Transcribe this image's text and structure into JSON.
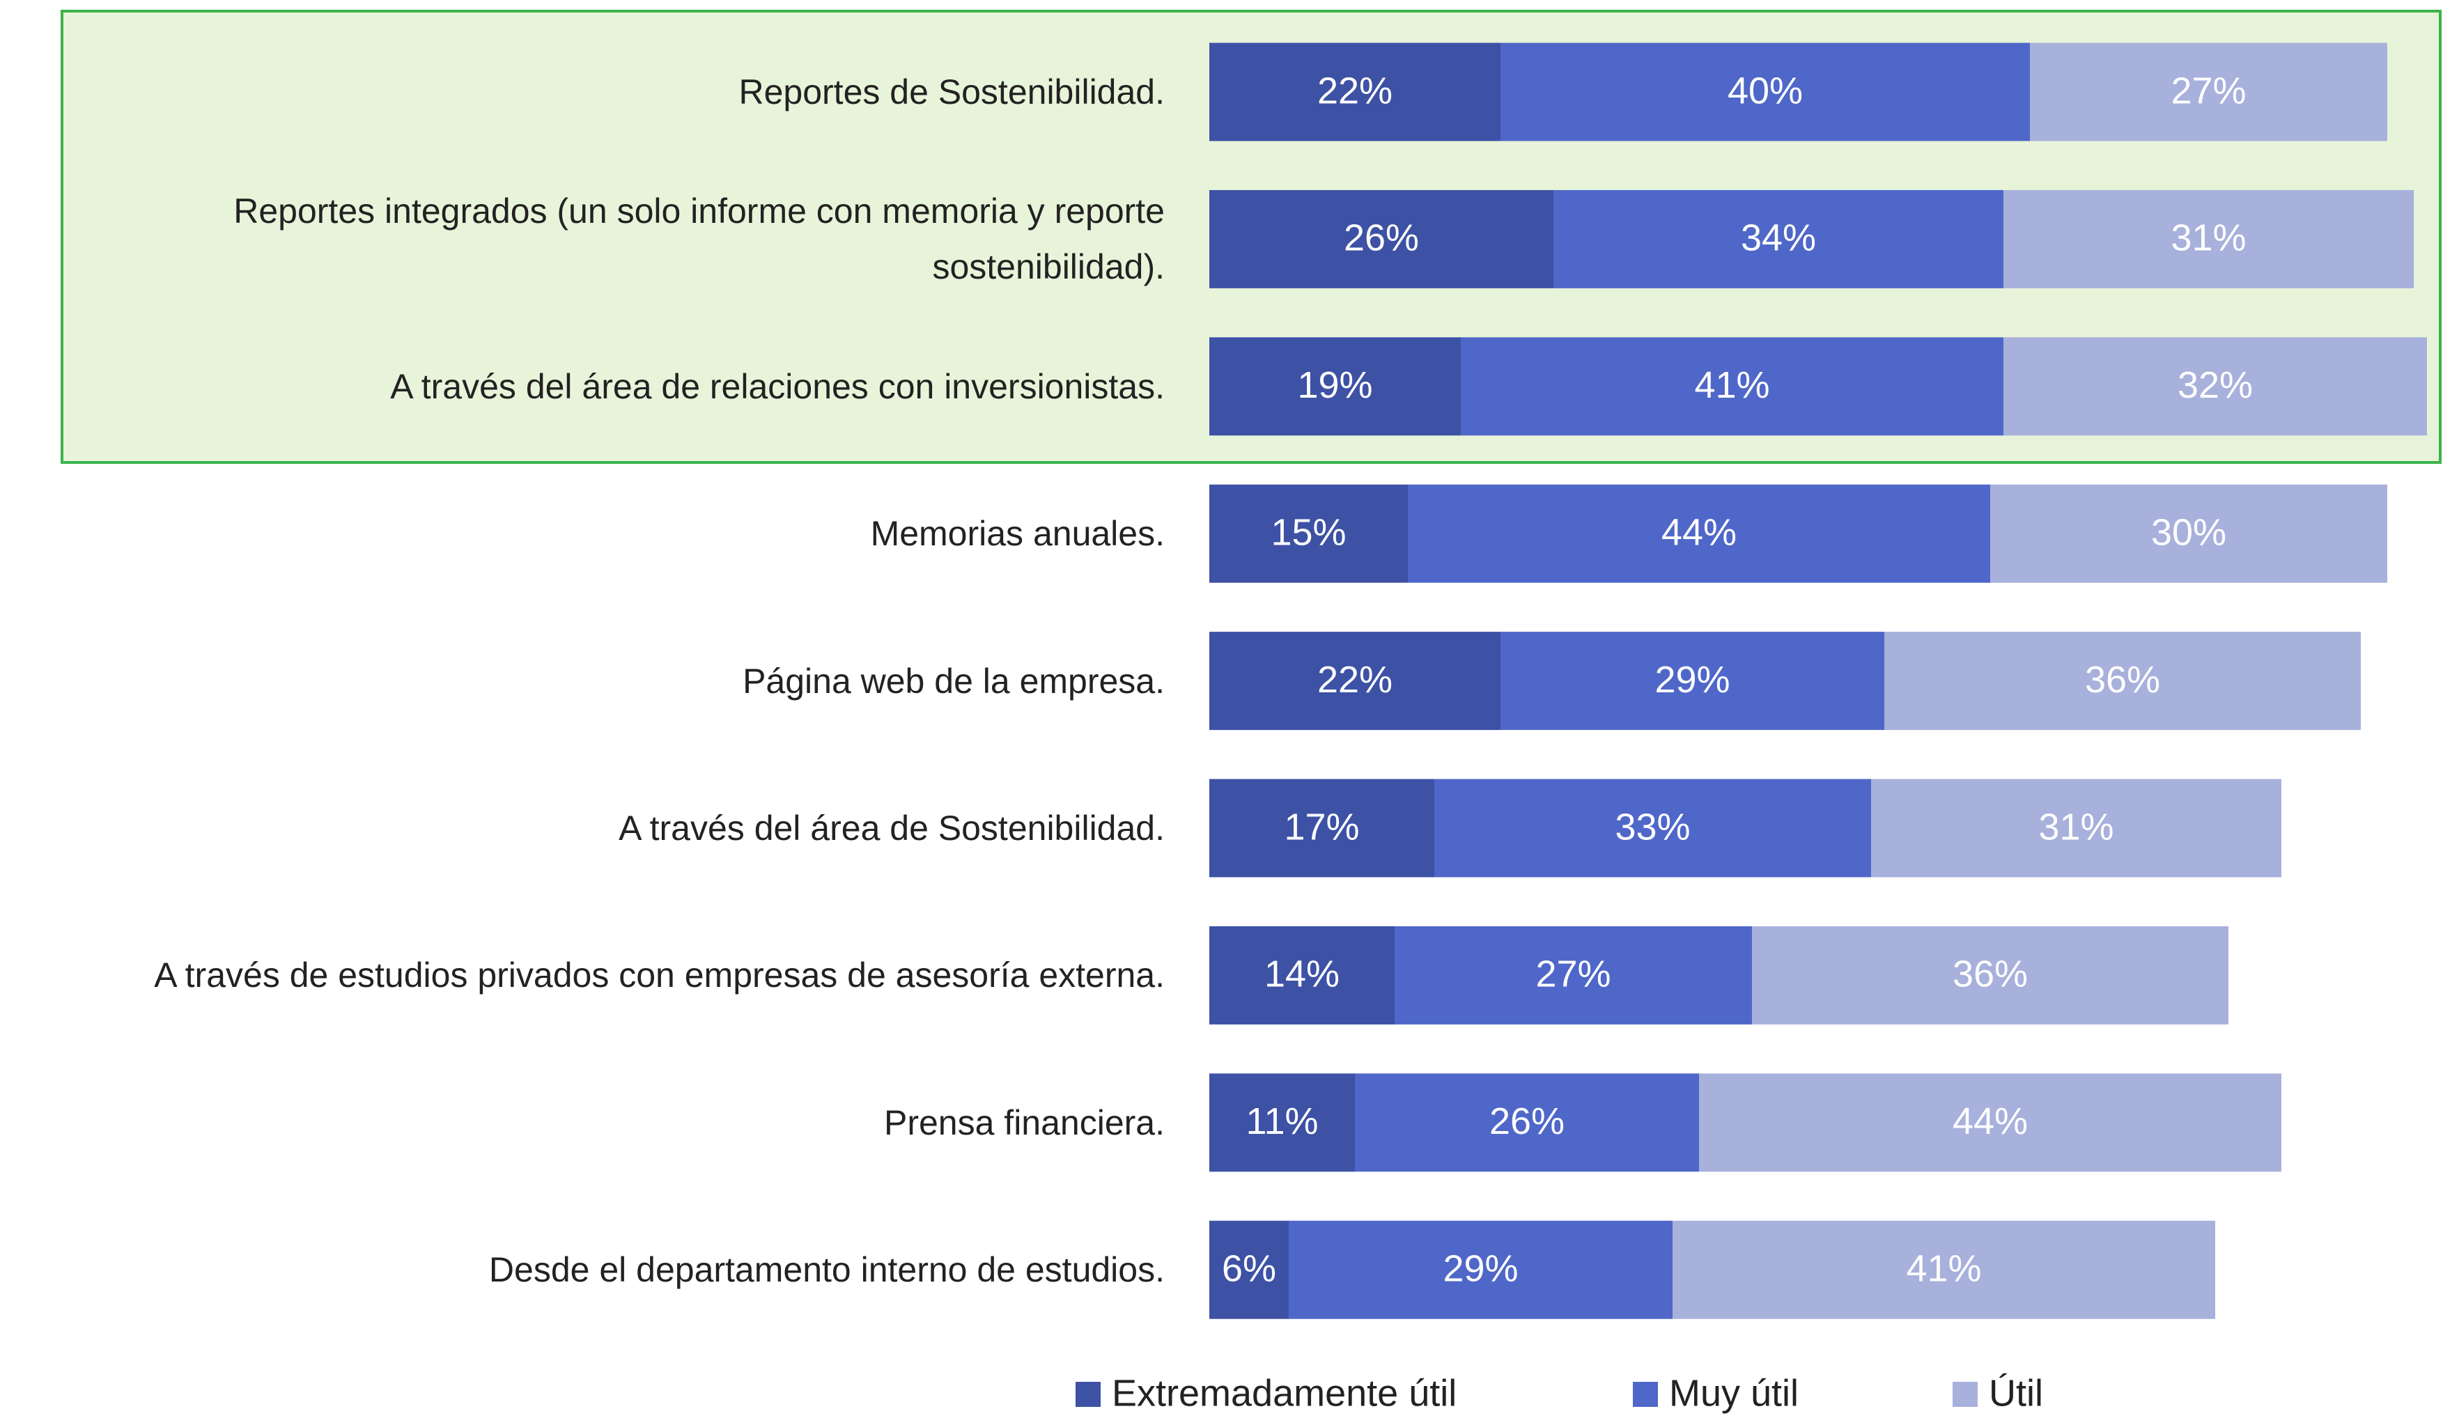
{
  "chart_data": {
    "type": "bar",
    "orientation": "horizontal",
    "stacked": true,
    "categories": [
      "Reportes de Sostenibilidad.",
      "Reportes integrados (un solo informe con memoria y reporte sostenibilidad).",
      "A través del área de relaciones con inversionistas.",
      "Memorias anuales.",
      "Página web de la empresa.",
      "A través del área de Sostenibilidad.",
      "A través de estudios privados con empresas de asesoría externa.",
      "Prensa financiera.",
      "Desde el departamento interno de estudios."
    ],
    "series": [
      {
        "name": "Extremadamente útil",
        "color": "#3d51a5",
        "values": [
          22,
          26,
          19,
          15,
          22,
          17,
          14,
          11,
          6
        ],
        "value_labels": [
          "22%",
          "26%",
          "19%",
          "15%",
          "22%",
          "17%",
          "14%",
          "11%",
          "6%"
        ]
      },
      {
        "name": "Muy útil",
        "color": "#4f67c8",
        "values": [
          40,
          34,
          41,
          44,
          29,
          33,
          27,
          26,
          29
        ],
        "value_labels": [
          "40%",
          "34%",
          "41%",
          "44%",
          "29%",
          "33%",
          "27%",
          "26%",
          "29%"
        ]
      },
      {
        "name": "Útil",
        "color": "#a8b0dc",
        "values": [
          27,
          31,
          32,
          30,
          36,
          31,
          36,
          44,
          41
        ],
        "value_labels": [
          "27%",
          "31%",
          "32%",
          "30%",
          "36%",
          "31%",
          "36%",
          "44%",
          "41%"
        ]
      }
    ],
    "legend": "bottom"
  }
}
